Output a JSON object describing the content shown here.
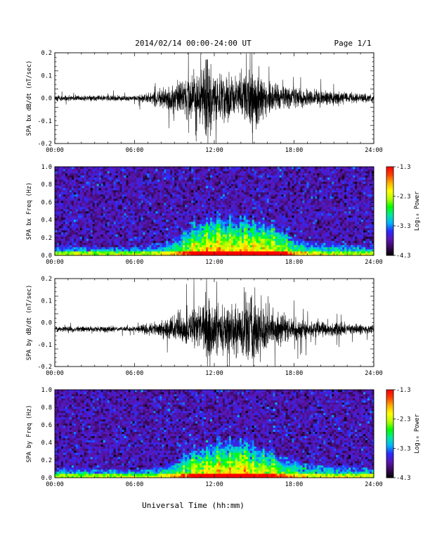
{
  "header": {
    "title": "2014/02/14  00:00-24:00 UT",
    "page": "Page 1/1"
  },
  "footer": {
    "xlabel": "Universal Time (hh:mm)"
  },
  "colors": {
    "trace": "#000000",
    "colormap": [
      "#000000",
      "#3a0a5a",
      "#5a16b4",
      "#2a2aff",
      "#00b4ff",
      "#00e8a0",
      "#00ff00",
      "#b4ff00",
      "#ffff00",
      "#ffb000",
      "#ff4000",
      "#ff0000"
    ]
  },
  "chart_data": [
    {
      "id": "bx-waveform",
      "type": "line",
      "ylabel": "SPA bx dB/dt (nT/sec)",
      "xlim": [
        0,
        24
      ],
      "ylim": [
        -0.2,
        0.2
      ],
      "x_ticks": [
        "00:00",
        "06:00",
        "12:00",
        "18:00",
        "24:00"
      ],
      "y_ticks": [
        "0.2",
        "0.1",
        "0.0",
        "-0.1",
        "-0.2"
      ],
      "y_tick_values": [
        0.2,
        0.1,
        0.0,
        -0.1,
        -0.2
      ],
      "series": [
        {
          "baseline": 0.0,
          "amplitude_envelope_x": [
            0,
            6,
            7,
            8,
            9,
            10,
            11,
            11.5,
            12,
            13,
            14,
            15,
            16,
            17,
            18,
            19,
            20,
            22,
            24
          ],
          "amplitude_envelope_y": [
            0.015,
            0.015,
            0.03,
            0.05,
            0.07,
            0.11,
            0.13,
            0.22,
            0.14,
            0.12,
            0.12,
            0.16,
            0.1,
            0.06,
            0.05,
            0.045,
            0.04,
            0.03,
            0.02
          ]
        }
      ]
    },
    {
      "id": "bx-spectrogram",
      "type": "heatmap",
      "ylabel": "SPA bx Freq (Hz)",
      "xlim": [
        0,
        24
      ],
      "ylim": [
        0,
        1.0
      ],
      "x_ticks": [
        "00:00",
        "06:00",
        "12:00",
        "18:00",
        "24:00"
      ],
      "y_ticks": [
        "1.0",
        "0.8",
        "0.6",
        "0.4",
        "0.2",
        "0.0"
      ],
      "y_tick_values": [
        1.0,
        0.8,
        0.6,
        0.4,
        0.2,
        0.0
      ],
      "colorbar": {
        "label": "Log₁₀ Power",
        "range": [
          -4.3,
          -1.3
        ],
        "ticks": [
          "-1.3",
          "-2.3",
          "-3.3",
          "-4.3"
        ],
        "tick_values": [
          -1.3,
          -2.3,
          -3.3,
          -4.3
        ]
      },
      "activity_envelope_x": [
        0,
        6,
        8,
        9,
        10,
        11,
        12,
        13,
        14,
        15,
        16,
        17,
        18,
        19,
        20,
        22,
        24
      ],
      "activity_envelope_y": [
        0.12,
        0.1,
        0.16,
        0.2,
        0.3,
        0.4,
        0.45,
        0.42,
        0.4,
        0.42,
        0.38,
        0.32,
        0.22,
        0.18,
        0.16,
        0.14,
        0.12
      ]
    },
    {
      "id": "by-waveform",
      "type": "line",
      "ylabel": "SPA by dB/dt (nT/sec)",
      "xlim": [
        0,
        24
      ],
      "ylim": [
        -0.2,
        0.2
      ],
      "x_ticks": [
        "00:00",
        "06:00",
        "12:00",
        "18:00",
        "24:00"
      ],
      "y_ticks": [
        "0.2",
        "0.1",
        "0.0",
        "-0.1",
        "-0.2"
      ],
      "y_tick_values": [
        0.2,
        0.1,
        0.0,
        -0.1,
        -0.2
      ],
      "series": [
        {
          "baseline": -0.03,
          "amplitude_envelope_x": [
            0,
            6,
            7,
            8,
            9,
            10,
            11,
            11.5,
            12,
            13,
            14,
            14.5,
            15,
            16,
            17,
            18,
            19,
            20,
            22,
            24
          ],
          "amplitude_envelope_y": [
            0.015,
            0.015,
            0.03,
            0.05,
            0.07,
            0.1,
            0.13,
            0.2,
            0.13,
            0.12,
            0.14,
            0.22,
            0.18,
            0.12,
            0.08,
            0.06,
            0.05,
            0.045,
            0.03,
            0.02
          ]
        }
      ]
    },
    {
      "id": "by-spectrogram",
      "type": "heatmap",
      "ylabel": "SPA by Freq (Hz)",
      "xlim": [
        0,
        24
      ],
      "ylim": [
        0,
        1.0
      ],
      "x_ticks": [
        "00:00",
        "06:00",
        "12:00",
        "18:00",
        "24:00"
      ],
      "y_ticks": [
        "1.0",
        "0.8",
        "0.6",
        "0.4",
        "0.2",
        "0.0"
      ],
      "y_tick_values": [
        1.0,
        0.8,
        0.6,
        0.4,
        0.2,
        0.0
      ],
      "colorbar": {
        "label": "Log₁₀ Power",
        "range": [
          -4.3,
          -1.3
        ],
        "ticks": [
          "-1.3",
          "-2.3",
          "-3.3",
          "-4.3"
        ],
        "tick_values": [
          -1.3,
          -2.3,
          -3.3,
          -4.3
        ]
      },
      "activity_envelope_x": [
        0,
        6,
        8,
        9,
        10,
        11,
        12,
        13,
        14,
        15,
        16,
        17,
        18,
        19,
        20,
        22,
        24
      ],
      "activity_envelope_y": [
        0.12,
        0.1,
        0.14,
        0.2,
        0.3,
        0.36,
        0.4,
        0.42,
        0.42,
        0.38,
        0.32,
        0.26,
        0.22,
        0.18,
        0.16,
        0.14,
        0.12
      ]
    }
  ]
}
